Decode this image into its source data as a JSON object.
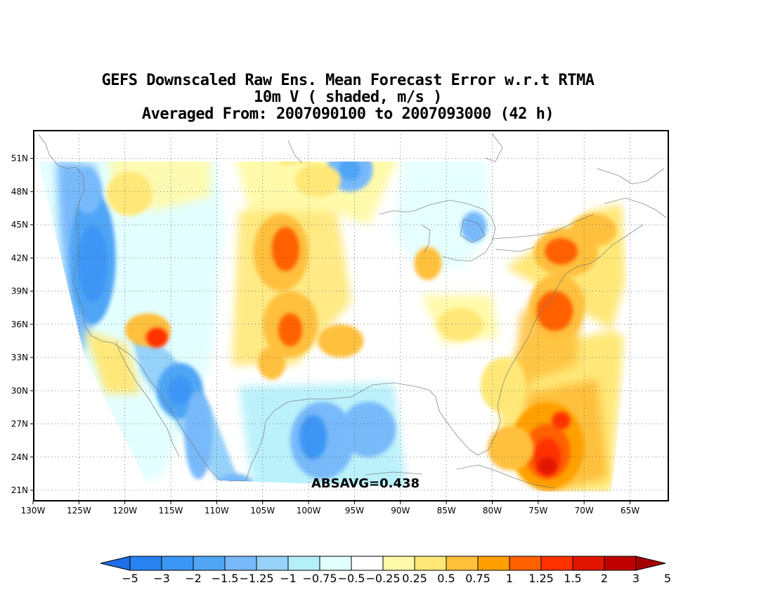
{
  "title": {
    "line1": "GEFS Downscaled Raw Ens. Mean Forecast Error w.r.t RTMA",
    "line2": "10m V ( shaded, m/s )",
    "line3": "Averaged From: 2007090100 to 2007093000 (42 h)"
  },
  "map": {
    "lon_labels": [
      "130W",
      "125W",
      "120W",
      "115W",
      "110W",
      "105W",
      "100W",
      "95W",
      "90W",
      "85W",
      "80W",
      "75W",
      "70W",
      "65W"
    ],
    "lat_labels": [
      "51N",
      "48N",
      "45N",
      "42N",
      "39N",
      "36N",
      "33N",
      "30N",
      "27N",
      "24N",
      "21N"
    ],
    "annotation": "ABSAVG=0.438"
  },
  "colorbar": {
    "labels": [
      "−5",
      "−3",
      "−2",
      "−1.5",
      "−1.25",
      "−1",
      "−0.75",
      "−0.5",
      "−0.25",
      "0.25",
      "0.5",
      "0.75",
      "1",
      "1.25",
      "1.5",
      "2",
      "3",
      "5"
    ],
    "colors": [
      "#1e6ee6",
      "#2882f0",
      "#3c96f5",
      "#50a5f5",
      "#78b9fa",
      "#96d2fa",
      "#b4f0fa",
      "#e1ffff",
      "#ffffff",
      "#fffaaa",
      "#ffe878",
      "#ffc03c",
      "#ffa000",
      "#ff6000",
      "#ff3200",
      "#e11400",
      "#c00000",
      "#a50000"
    ]
  },
  "blobs": [
    {
      "lon": -123.5,
      "lat": 42,
      "rx": 2.5,
      "ry": 6,
      "c": "#50a5f5"
    },
    {
      "lon": -123.5,
      "lat": 41.5,
      "rx": 1.6,
      "ry": 3.5,
      "c": "#3c96f5"
    },
    {
      "lon": -124,
      "lat": 48,
      "rx": 1.5,
      "ry": 2,
      "c": "#78b9fa"
    },
    {
      "lon": -114,
      "lat": 30,
      "rx": 2.5,
      "ry": 2.5,
      "c": "#50a5f5"
    },
    {
      "lon": -114,
      "lat": 30,
      "rx": 1.3,
      "ry": 1.3,
      "c": "#3c96f5"
    },
    {
      "lon": -112,
      "lat": 26,
      "rx": 1.5,
      "ry": 4,
      "c": "#78b9fa"
    },
    {
      "lon": -98.5,
      "lat": 25.5,
      "rx": 3.5,
      "ry": 3.5,
      "c": "#78b9fa"
    },
    {
      "lon": -99.5,
      "lat": 25.8,
      "rx": 1.5,
      "ry": 2,
      "c": "#3c96f5"
    },
    {
      "lon": -93.5,
      "lat": 26.5,
      "rx": 3,
      "ry": 2.5,
      "c": "#78b9fa"
    },
    {
      "lon": -95.5,
      "lat": 50,
      "rx": 2.5,
      "ry": 2,
      "c": "#78b9fa"
    },
    {
      "lon": -95.5,
      "lat": 50,
      "rx": 1.2,
      "ry": 1,
      "c": "#50a5f5"
    },
    {
      "lon": -82,
      "lat": 44.8,
      "rx": 1.4,
      "ry": 1.4,
      "c": "#78b9fa"
    },
    {
      "lon": -108,
      "lat": 21.5,
      "rx": 2,
      "ry": 1,
      "c": "#78b9fa"
    },
    {
      "lon": -103,
      "lat": 42.5,
      "rx": 3,
      "ry": 3.5,
      "c": "#ffc03c"
    },
    {
      "lon": -102.5,
      "lat": 42.8,
      "rx": 1.5,
      "ry": 2,
      "c": "#ff6000"
    },
    {
      "lon": -102,
      "lat": 36,
      "rx": 3,
      "ry": 3,
      "c": "#ffc03c"
    },
    {
      "lon": -102,
      "lat": 35.5,
      "rx": 1.3,
      "ry": 1.5,
      "c": "#ff6000"
    },
    {
      "lon": -117.5,
      "lat": 35.5,
      "rx": 2.5,
      "ry": 1.5,
      "c": "#ffc03c"
    },
    {
      "lon": -116.5,
      "lat": 34.8,
      "rx": 1.2,
      "ry": 0.9,
      "c": "#ff3200"
    },
    {
      "lon": -119.5,
      "lat": 47.8,
      "rx": 2.5,
      "ry": 2,
      "c": "#ffe878"
    },
    {
      "lon": -96.5,
      "lat": 34.5,
      "rx": 2.5,
      "ry": 1.5,
      "c": "#ffc03c"
    },
    {
      "lon": -104,
      "lat": 32.5,
      "rx": 1.5,
      "ry": 1.5,
      "c": "#ffc03c"
    },
    {
      "lon": -99,
      "lat": 49,
      "rx": 2.5,
      "ry": 1.5,
      "c": "#ffe878"
    },
    {
      "lon": -87,
      "lat": 41.5,
      "rx": 1.5,
      "ry": 1.5,
      "c": "#ffc03c"
    },
    {
      "lon": -83.5,
      "lat": 36,
      "rx": 2.5,
      "ry": 1.5,
      "c": "#ffe878"
    },
    {
      "lon": -73,
      "lat": 37.5,
      "rx": 3,
      "ry": 3,
      "c": "#ffc03c"
    },
    {
      "lon": -73.2,
      "lat": 37.2,
      "rx": 2,
      "ry": 1.8,
      "c": "#ff6000"
    },
    {
      "lon": -72,
      "lat": 42.5,
      "rx": 3.5,
      "ry": 2.2,
      "c": "#ffc03c"
    },
    {
      "lon": -72.5,
      "lat": 42.6,
      "rx": 1.8,
      "ry": 1.2,
      "c": "#ff6000"
    },
    {
      "lon": -69,
      "lat": 44.5,
      "rx": 2.5,
      "ry": 1.5,
      "c": "#ffc03c"
    },
    {
      "lon": -74,
      "lat": 25,
      "rx": 4,
      "ry": 4,
      "c": "#ffa000"
    },
    {
      "lon": -74,
      "lat": 24.5,
      "rx": 2.5,
      "ry": 2.5,
      "c": "#ff6000"
    },
    {
      "lon": -74,
      "lat": 24,
      "rx": 1.5,
      "ry": 1.7,
      "c": "#ff3200"
    },
    {
      "lon": -74,
      "lat": 23.2,
      "rx": 1,
      "ry": 0.8,
      "c": "#e11400"
    },
    {
      "lon": -72.5,
      "lat": 27.3,
      "rx": 1,
      "ry": 0.8,
      "c": "#ff3200"
    },
    {
      "lon": -78,
      "lat": 24.8,
      "rx": 2.5,
      "ry": 2,
      "c": "#ffc03c"
    },
    {
      "lon": -78.8,
      "lat": 30.5,
      "rx": 2.5,
      "ry": 2.5,
      "c": "#ffe878"
    }
  ]
}
